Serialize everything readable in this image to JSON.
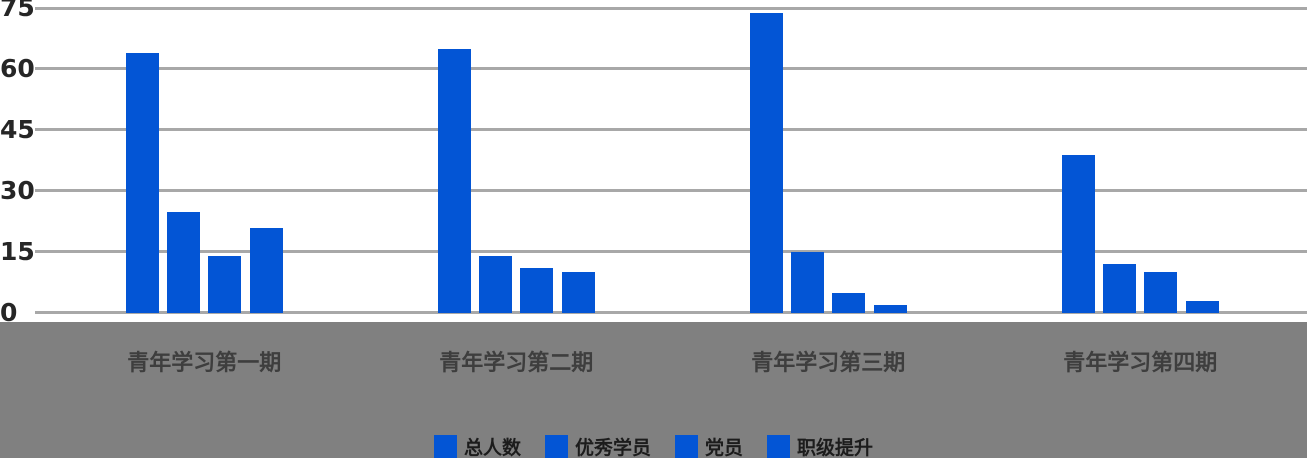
{
  "chart_data": {
    "type": "bar",
    "title": "",
    "categories": [
      "青年学习第一期",
      "青年学习第二期",
      "青年学习第三期",
      "青年学习第四期"
    ],
    "series": [
      {
        "name": "总人数",
        "values": [
          64,
          65,
          74,
          39
        ]
      },
      {
        "name": "优秀学员",
        "values": [
          25,
          14,
          15,
          12
        ]
      },
      {
        "name": "党员",
        "values": [
          14,
          11,
          5,
          10
        ]
      },
      {
        "name": "职级提升",
        "values": [
          21,
          10,
          2,
          3
        ]
      }
    ],
    "yticks": [
      0,
      15,
      30,
      45,
      60,
      75
    ],
    "ylim": [
      0,
      75
    ],
    "grid": true,
    "legend_position": "bottom",
    "legend": [
      "总人数",
      "优秀学员",
      "党员",
      "职级提升"
    ]
  },
  "colors": {
    "bar": "#0355d5",
    "gridline": "#a8a8a8",
    "footer_band": "#808080",
    "y_tick_text": "#262626",
    "x_label_text": "#3e3e3e",
    "legend_text": "#1c1c1c"
  }
}
